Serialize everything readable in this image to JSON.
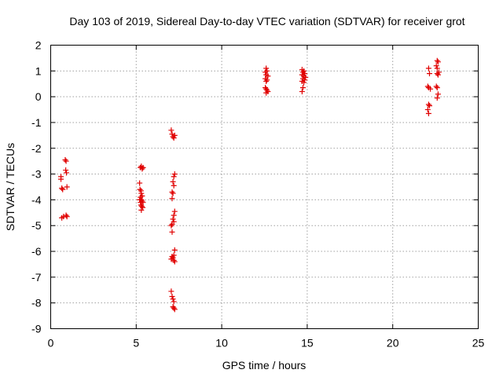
{
  "chart_data": {
    "type": "scatter",
    "title": "Day 103 of 2019, Sidereal Day-to-day VTEC variation (SDTVAR) for receiver grot",
    "xlabel": "GPS time / hours",
    "ylabel": "SDTVAR / TECUs",
    "xlim": [
      0,
      25
    ],
    "ylim": [
      -9,
      2
    ],
    "x_ticks": [
      0,
      5,
      10,
      15,
      20,
      25
    ],
    "y_ticks": [
      -9,
      -8,
      -7,
      -6,
      -5,
      -4,
      -3,
      -2,
      -1,
      0,
      1,
      2
    ],
    "x_tick_labels": [
      "0",
      "5",
      "10",
      "15",
      "20",
      "25"
    ],
    "y_tick_labels": [
      "-9",
      "-8",
      "-7",
      "-6",
      "-5",
      "-4",
      "-3",
      "-2",
      "-1",
      "0",
      "1",
      "2"
    ],
    "grid": true,
    "marker": "+",
    "color": "#e00000",
    "series": [
      {
        "name": "SDTVAR",
        "points": [
          [
            0.6,
            -3.1
          ],
          [
            0.6,
            -3.2
          ],
          [
            0.65,
            -3.55
          ],
          [
            0.7,
            -3.6
          ],
          [
            0.65,
            -4.7
          ],
          [
            0.75,
            -4.65
          ],
          [
            0.85,
            -2.45
          ],
          [
            0.9,
            -2.5
          ],
          [
            0.88,
            -2.85
          ],
          [
            0.92,
            -2.95
          ],
          [
            0.95,
            -3.5
          ],
          [
            0.9,
            -4.6
          ],
          [
            0.95,
            -4.65
          ],
          [
            5.2,
            -3.35
          ],
          [
            5.25,
            -2.75
          ],
          [
            5.3,
            -2.7
          ],
          [
            5.35,
            -2.8
          ],
          [
            5.4,
            -2.75
          ],
          [
            5.22,
            -3.6
          ],
          [
            5.28,
            -3.65
          ],
          [
            5.3,
            -3.75
          ],
          [
            5.35,
            -3.85
          ],
          [
            5.25,
            -3.9
          ],
          [
            5.3,
            -4.0
          ],
          [
            5.35,
            -4.05
          ],
          [
            5.4,
            -4.1
          ],
          [
            5.28,
            -4.2
          ],
          [
            5.32,
            -4.25
          ],
          [
            5.38,
            -4.3
          ],
          [
            5.3,
            -4.4
          ],
          [
            5.25,
            -4.1
          ],
          [
            5.2,
            -4.0
          ],
          [
            7.05,
            -1.3
          ],
          [
            7.1,
            -1.45
          ],
          [
            7.15,
            -1.55
          ],
          [
            7.2,
            -1.6
          ],
          [
            7.25,
            -1.5
          ],
          [
            7.25,
            -3.0
          ],
          [
            7.2,
            -3.1
          ],
          [
            7.15,
            -3.3
          ],
          [
            7.2,
            -3.45
          ],
          [
            7.1,
            -3.7
          ],
          [
            7.15,
            -3.75
          ],
          [
            7.1,
            -3.95
          ],
          [
            7.25,
            -4.45
          ],
          [
            7.2,
            -4.6
          ],
          [
            7.15,
            -4.75
          ],
          [
            7.2,
            -4.85
          ],
          [
            7.1,
            -4.95
          ],
          [
            7.05,
            -5.0
          ],
          [
            7.1,
            -5.25
          ],
          [
            7.25,
            -5.95
          ],
          [
            7.2,
            -6.15
          ],
          [
            7.1,
            -6.2
          ],
          [
            7.15,
            -6.25
          ],
          [
            7.05,
            -6.3
          ],
          [
            7.2,
            -6.35
          ],
          [
            7.25,
            -6.4
          ],
          [
            7.05,
            -7.55
          ],
          [
            7.1,
            -7.75
          ],
          [
            7.15,
            -7.85
          ],
          [
            7.2,
            -7.95
          ],
          [
            7.15,
            -8.15
          ],
          [
            7.2,
            -8.2
          ],
          [
            7.25,
            -8.25
          ],
          [
            12.6,
            1.1
          ],
          [
            12.65,
            1.0
          ],
          [
            12.55,
            0.95
          ],
          [
            12.6,
            0.85
          ],
          [
            12.7,
            0.8
          ],
          [
            12.55,
            0.7
          ],
          [
            12.65,
            0.65
          ],
          [
            12.6,
            0.6
          ],
          [
            12.55,
            0.35
          ],
          [
            12.6,
            0.3
          ],
          [
            12.65,
            0.25
          ],
          [
            12.7,
            0.2
          ],
          [
            12.6,
            0.15
          ],
          [
            14.7,
            1.05
          ],
          [
            14.8,
            1.0
          ],
          [
            14.75,
            0.95
          ],
          [
            14.85,
            0.9
          ],
          [
            14.7,
            0.85
          ],
          [
            14.8,
            0.8
          ],
          [
            14.9,
            0.75
          ],
          [
            14.75,
            0.7
          ],
          [
            14.85,
            0.65
          ],
          [
            14.7,
            0.6
          ],
          [
            14.8,
            0.55
          ],
          [
            14.75,
            0.35
          ],
          [
            14.7,
            0.2
          ],
          [
            22.1,
            1.1
          ],
          [
            22.15,
            0.9
          ],
          [
            22.05,
            0.4
          ],
          [
            22.1,
            0.35
          ],
          [
            22.2,
            0.3
          ],
          [
            22.1,
            -0.3
          ],
          [
            22.15,
            -0.35
          ],
          [
            22.05,
            -0.5
          ],
          [
            22.1,
            -0.65
          ],
          [
            22.6,
            1.4
          ],
          [
            22.65,
            1.35
          ],
          [
            22.55,
            1.2
          ],
          [
            22.6,
            1.1
          ],
          [
            22.7,
            0.95
          ],
          [
            22.6,
            0.9
          ],
          [
            22.65,
            0.85
          ],
          [
            22.55,
            0.4
          ],
          [
            22.6,
            0.35
          ],
          [
            22.65,
            0.1
          ],
          [
            22.6,
            -0.05
          ]
        ]
      }
    ]
  }
}
